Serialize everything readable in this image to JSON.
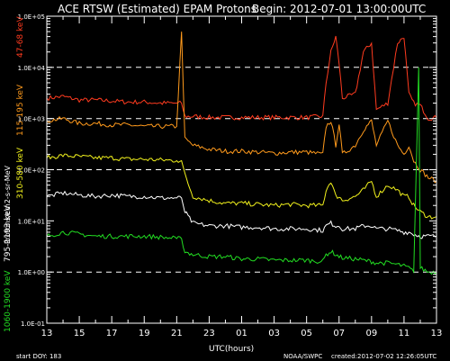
{
  "title_left": "ACE RTSW (Estimated) EPAM Protons",
  "title_right": "Begin: 2012-07-01 13:00:00UTC",
  "footer": {
    "start_doy": "start DOY: 183",
    "source": "NOAA/SWPC",
    "created": "created:2012-07-02 12:26:05UTC"
  },
  "colors": {
    "background": "#000000",
    "frame": "#ffffff",
    "grid": "#ffffff",
    "ch_47_68": "#ff3b1f",
    "ch_115_195": "#ff9a1c",
    "ch_310_580": "#f2f21c",
    "ch_795_1193": "#ffffff",
    "ch_1060_1900": "#22dd22"
  },
  "chart_data": {
    "type": "line",
    "title": "ACE RTSW (Estimated) EPAM Protons",
    "xlabel": "UTC(hours)",
    "ylabel": "Protons/cm2-s-sr-MeV",
    "y_scale": "log",
    "ylim": [
      0.1,
      100000
    ],
    "y_ticks": [
      "1.0E-01",
      "1.0E+00",
      "1.0E+01",
      "1.0E+02",
      "1.0E+03",
      "1.0E+04",
      "1.0E+05"
    ],
    "y_tick_values": [
      0.1,
      1,
      10,
      100,
      1000,
      10000,
      100000
    ],
    "dashed_gridlines_at": [
      1,
      100,
      1000,
      10000
    ],
    "x_range_hours": [
      0,
      24
    ],
    "x_tick_labels": [
      "13",
      "15",
      "17",
      "19",
      "21",
      "23",
      "01",
      "03",
      "05",
      "07",
      "09",
      "11",
      "13"
    ],
    "spike_hour": 8.3,
    "series": [
      {
        "name": "47-68 keV",
        "color_key": "ch_47_68",
        "points": [
          [
            0,
            2500
          ],
          [
            1,
            2700
          ],
          [
            2,
            2300
          ],
          [
            3,
            2300
          ],
          [
            4,
            2200
          ],
          [
            5,
            2100
          ],
          [
            6,
            2100
          ],
          [
            7,
            2000
          ],
          [
            8,
            2000
          ],
          [
            8.3,
            2000
          ],
          [
            8.5,
            1100
          ],
          [
            9,
            1100
          ],
          [
            10,
            1050
          ],
          [
            11,
            1050
          ],
          [
            12,
            1050
          ],
          [
            13,
            1050
          ],
          [
            14,
            1050
          ],
          [
            15,
            1050
          ],
          [
            16,
            1050
          ],
          [
            17,
            1100
          ],
          [
            17.2,
            5000
          ],
          [
            17.5,
            20000
          ],
          [
            17.8,
            40000
          ],
          [
            18,
            12000
          ],
          [
            18.2,
            2500
          ],
          [
            19,
            3000
          ],
          [
            19.5,
            20000
          ],
          [
            20,
            30000
          ],
          [
            20.3,
            1500
          ],
          [
            21,
            2000
          ],
          [
            21.6,
            30000
          ],
          [
            22,
            40000
          ],
          [
            22.3,
            3000
          ],
          [
            22.6,
            2000
          ],
          [
            23,
            1800
          ],
          [
            23.5,
            1000
          ],
          [
            24,
            1050
          ]
        ]
      },
      {
        "name": "115-195 keV",
        "color_key": "ch_115_195",
        "points": [
          [
            0,
            900
          ],
          [
            1,
            1000
          ],
          [
            2,
            800
          ],
          [
            3,
            800
          ],
          [
            4,
            750
          ],
          [
            5,
            750
          ],
          [
            6,
            700
          ],
          [
            7,
            700
          ],
          [
            8,
            700
          ],
          [
            8.3,
            50000
          ],
          [
            8.5,
            400
          ],
          [
            9,
            300
          ],
          [
            10,
            250
          ],
          [
            11,
            230
          ],
          [
            12,
            230
          ],
          [
            13,
            220
          ],
          [
            14,
            210
          ],
          [
            15,
            220
          ],
          [
            16,
            220
          ],
          [
            17,
            200
          ],
          [
            17.2,
            700
          ],
          [
            17.5,
            900
          ],
          [
            17.8,
            300
          ],
          [
            18,
            800
          ],
          [
            18.2,
            200
          ],
          [
            19,
            300
          ],
          [
            19.5,
            600
          ],
          [
            20,
            900
          ],
          [
            20.3,
            300
          ],
          [
            21,
            900
          ],
          [
            21.6,
            300
          ],
          [
            22,
            200
          ],
          [
            22.3,
            300
          ],
          [
            22.6,
            150
          ],
          [
            23,
            100
          ],
          [
            23.5,
            70
          ],
          [
            24,
            60
          ]
        ]
      },
      {
        "name": "310-580 keV",
        "color_key": "ch_310_580",
        "points": [
          [
            0,
            170
          ],
          [
            1,
            190
          ],
          [
            2,
            180
          ],
          [
            3,
            170
          ],
          [
            4,
            170
          ],
          [
            5,
            160
          ],
          [
            6,
            160
          ],
          [
            7,
            155
          ],
          [
            8,
            150
          ],
          [
            8.3,
            150
          ],
          [
            8.5,
            80
          ],
          [
            9,
            30
          ],
          [
            10,
            25
          ],
          [
            11,
            22
          ],
          [
            12,
            22
          ],
          [
            13,
            21
          ],
          [
            14,
            20
          ],
          [
            15,
            21
          ],
          [
            16,
            20
          ],
          [
            17,
            20
          ],
          [
            17.2,
            40
          ],
          [
            17.5,
            60
          ],
          [
            17.8,
            30
          ],
          [
            18,
            30
          ],
          [
            18.2,
            25
          ],
          [
            19,
            30
          ],
          [
            19.5,
            40
          ],
          [
            20,
            60
          ],
          [
            20.3,
            30
          ],
          [
            21,
            50
          ],
          [
            21.6,
            40
          ],
          [
            22,
            30
          ],
          [
            22.3,
            30
          ],
          [
            22.6,
            20
          ],
          [
            23,
            15
          ],
          [
            23.5,
            12
          ],
          [
            24,
            12
          ]
        ]
      },
      {
        "name": "795-1193 keV",
        "color_key": "ch_795_1193",
        "points": [
          [
            0,
            30
          ],
          [
            1,
            35
          ],
          [
            2,
            32
          ],
          [
            3,
            30
          ],
          [
            4,
            32
          ],
          [
            5,
            30
          ],
          [
            6,
            30
          ],
          [
            7,
            28
          ],
          [
            8,
            28
          ],
          [
            8.3,
            28
          ],
          [
            8.5,
            15
          ],
          [
            9,
            9
          ],
          [
            10,
            8
          ],
          [
            11,
            8
          ],
          [
            12,
            7.5
          ],
          [
            13,
            7.5
          ],
          [
            14,
            7
          ],
          [
            15,
            7
          ],
          [
            16,
            7
          ],
          [
            17,
            6.5
          ],
          [
            17.2,
            8
          ],
          [
            17.5,
            9
          ],
          [
            17.8,
            8
          ],
          [
            18,
            8
          ],
          [
            18.2,
            7
          ],
          [
            19,
            7
          ],
          [
            19.5,
            8
          ],
          [
            20,
            8
          ],
          [
            20.3,
            7
          ],
          [
            21,
            7
          ],
          [
            21.6,
            6.5
          ],
          [
            22,
            6
          ],
          [
            22.3,
            6
          ],
          [
            22.6,
            5.5
          ],
          [
            23,
            5
          ],
          [
            23.5,
            5
          ],
          [
            24,
            5
          ]
        ]
      },
      {
        "name": "1060-1900 keV",
        "color_key": "ch_1060_1900",
        "points": [
          [
            0,
            5
          ],
          [
            1,
            6
          ],
          [
            2,
            5.5
          ],
          [
            3,
            5
          ],
          [
            4,
            5
          ],
          [
            5,
            5
          ],
          [
            6,
            5
          ],
          [
            7,
            4.8
          ],
          [
            8,
            4.5
          ],
          [
            8.3,
            4.5
          ],
          [
            8.5,
            2.5
          ],
          [
            9,
            2.2
          ],
          [
            10,
            2
          ],
          [
            11,
            2
          ],
          [
            12,
            1.8
          ],
          [
            13,
            1.8
          ],
          [
            14,
            1.7
          ],
          [
            15,
            1.7
          ],
          [
            16,
            1.7
          ],
          [
            17,
            1.6
          ],
          [
            17.2,
            2.2
          ],
          [
            17.5,
            2.5
          ],
          [
            17.8,
            2.2
          ],
          [
            18,
            2
          ],
          [
            18.2,
            1.9
          ],
          [
            19,
            1.8
          ],
          [
            19.5,
            1.7
          ],
          [
            20,
            1.6
          ],
          [
            20.3,
            1.5
          ],
          [
            21,
            1.5
          ],
          [
            21.6,
            1.4
          ],
          [
            22,
            1.3
          ],
          [
            22.3,
            1.2
          ],
          [
            22.6,
            1
          ],
          [
            22.9,
            10000
          ],
          [
            23,
            1.2
          ],
          [
            23.5,
            1
          ],
          [
            24,
            1
          ]
        ]
      }
    ]
  }
}
